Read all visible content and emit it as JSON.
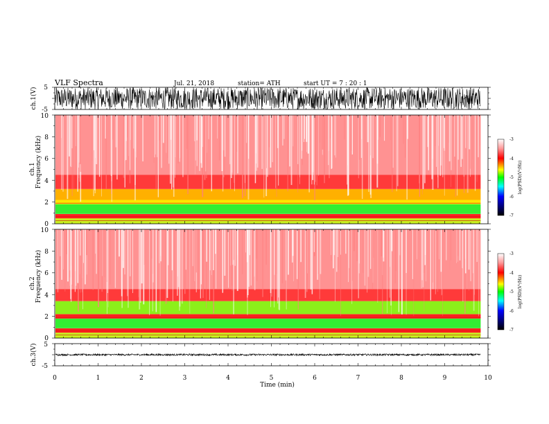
{
  "header": {
    "title": "VLF  Spectra",
    "date": "Jul.  21, 2018",
    "station": "station= ATH",
    "start_ut": "start  UT  =    7  : 20 : 1"
  },
  "chart_data": [
    {
      "type": "line",
      "panel": "ch1-waveform",
      "ylabel": "ch.1(V)",
      "ylim": [
        -5,
        5
      ],
      "yticks": [
        "5",
        "-5"
      ],
      "xlim": [
        0,
        10
      ],
      "amplitude_range": [
        -5,
        5
      ]
    },
    {
      "type": "heatmap",
      "panel": "ch1-spectrogram",
      "ylabel": "ch.1",
      "ylabel2": "Frequency  (kHz)",
      "ylim": [
        0,
        10
      ],
      "yticks": [
        "0",
        "2",
        "4",
        "6",
        "8",
        "10"
      ],
      "xlim": [
        0,
        10
      ],
      "data_end_min": 9.83,
      "colorbar": {
        "label": "log(PSD)(V²/Hz)",
        "range": [
          -7,
          -3
        ],
        "ticks": [
          "-3",
          "-4",
          "-5",
          "-6",
          "-7"
        ]
      },
      "bands": [
        {
          "from_khz": 0.0,
          "to_khz": 0.5,
          "dominant": "yellow-green"
        },
        {
          "from_khz": 0.5,
          "to_khz": 0.9,
          "dominant": "red"
        },
        {
          "from_khz": 0.9,
          "to_khz": 1.8,
          "dominant": "green"
        },
        {
          "from_khz": 1.8,
          "to_khz": 2.2,
          "dominant": "yellow"
        },
        {
          "from_khz": 2.2,
          "to_khz": 3.2,
          "dominant": "yellow-red"
        },
        {
          "from_khz": 3.2,
          "to_khz": 10.0,
          "dominant": "red-white"
        }
      ]
    },
    {
      "type": "heatmap",
      "panel": "ch2-spectrogram",
      "ylabel": "ch.2",
      "ylabel2": "Frequency  (kHz)",
      "ylim": [
        0,
        10
      ],
      "yticks": [
        "0",
        "2",
        "4",
        "6",
        "8",
        "10"
      ],
      "xlim": [
        0,
        10
      ],
      "data_end_min": 9.83,
      "colorbar": {
        "label": "log(PSD)(V²/Hz)",
        "range": [
          -7,
          -3
        ],
        "ticks": [
          "-3",
          "-4",
          "-5",
          "-6",
          "-7"
        ]
      },
      "bands": [
        {
          "from_khz": 0.0,
          "to_khz": 0.5,
          "dominant": "yellow-green"
        },
        {
          "from_khz": 0.5,
          "to_khz": 0.9,
          "dominant": "red"
        },
        {
          "from_khz": 0.9,
          "to_khz": 1.8,
          "dominant": "green"
        },
        {
          "from_khz": 1.8,
          "to_khz": 2.2,
          "dominant": "red"
        },
        {
          "from_khz": 2.2,
          "to_khz": 3.4,
          "dominant": "green-yellow"
        },
        {
          "from_khz": 3.4,
          "to_khz": 10.0,
          "dominant": "red-white"
        }
      ]
    },
    {
      "type": "line",
      "panel": "ch3-waveform",
      "ylabel": "ch.3(V)",
      "ylim": [
        -5,
        5
      ],
      "yticks": [
        "5",
        "-5"
      ],
      "xlim": [
        0,
        10
      ],
      "xlabel": "Time  (min)",
      "xticks": [
        "0",
        "1",
        "2",
        "3",
        "4",
        "5",
        "6",
        "7",
        "8",
        "9",
        "10"
      ],
      "amplitude_range": [
        -0.4,
        0.4
      ]
    }
  ]
}
